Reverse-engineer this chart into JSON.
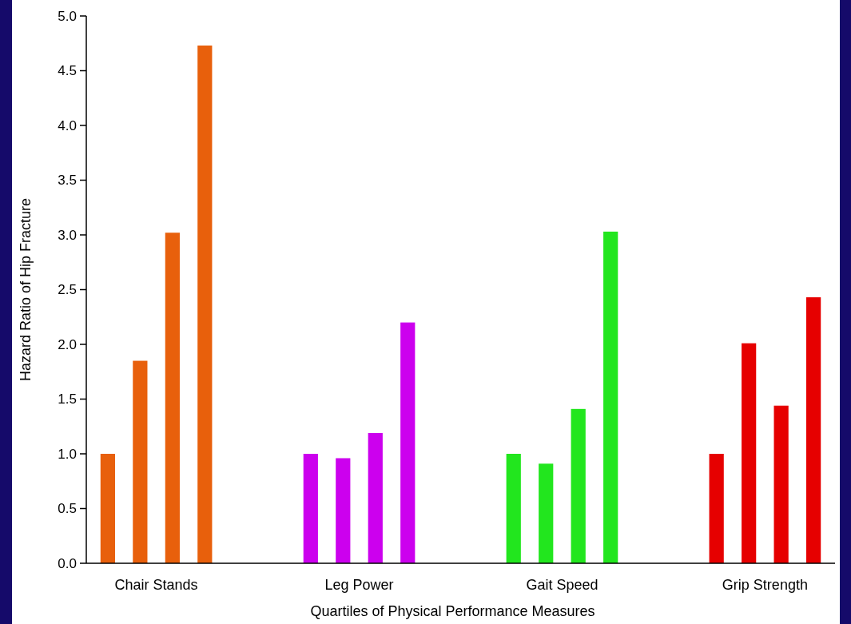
{
  "chart_data": {
    "type": "bar",
    "xlabel": "Quartiles of Physical Performance Measures",
    "ylabel": "Hazard Ratio of Hip Fracture",
    "categories": [
      "Chair Stands",
      "Leg Power",
      "Gait Speed",
      "Grip Strength"
    ],
    "series": [
      {
        "colors": [
          "#e8600c",
          "#cc00ee",
          "#22e61e",
          "#e60000"
        ],
        "values": [
          1.0,
          1.0,
          1.0,
          1.0
        ]
      },
      {
        "colors": [
          "#e8600c",
          "#cc00ee",
          "#22e61e",
          "#e60000"
        ],
        "values": [
          1.85,
          0.96,
          0.91,
          2.01
        ]
      },
      {
        "colors": [
          "#e8600c",
          "#cc00ee",
          "#22e61e",
          "#e60000"
        ],
        "values": [
          3.02,
          1.19,
          1.41,
          1.44
        ]
      },
      {
        "colors": [
          "#e8600c",
          "#cc00ee",
          "#22e61e",
          "#e60000"
        ],
        "values": [
          4.73,
          2.2,
          3.03,
          2.43
        ]
      }
    ],
    "ylim": [
      0,
      5
    ],
    "yticks": [
      {
        "value": 0,
        "label": "0.0"
      },
      {
        "value": 0.5,
        "label": "0.5"
      },
      {
        "value": 1,
        "label": "1.0"
      },
      {
        "value": 1.5,
        "label": "1.5"
      },
      {
        "value": 2,
        "label": "2.0"
      },
      {
        "value": 2.5,
        "label": "2.5"
      },
      {
        "value": 3,
        "label": "3.0"
      },
      {
        "value": 3.5,
        "label": "3.5"
      },
      {
        "value": 4,
        "label": "4.0"
      },
      {
        "value": 4.5,
        "label": "4.5"
      },
      {
        "value": 5,
        "label": "5.0"
      }
    ]
  }
}
